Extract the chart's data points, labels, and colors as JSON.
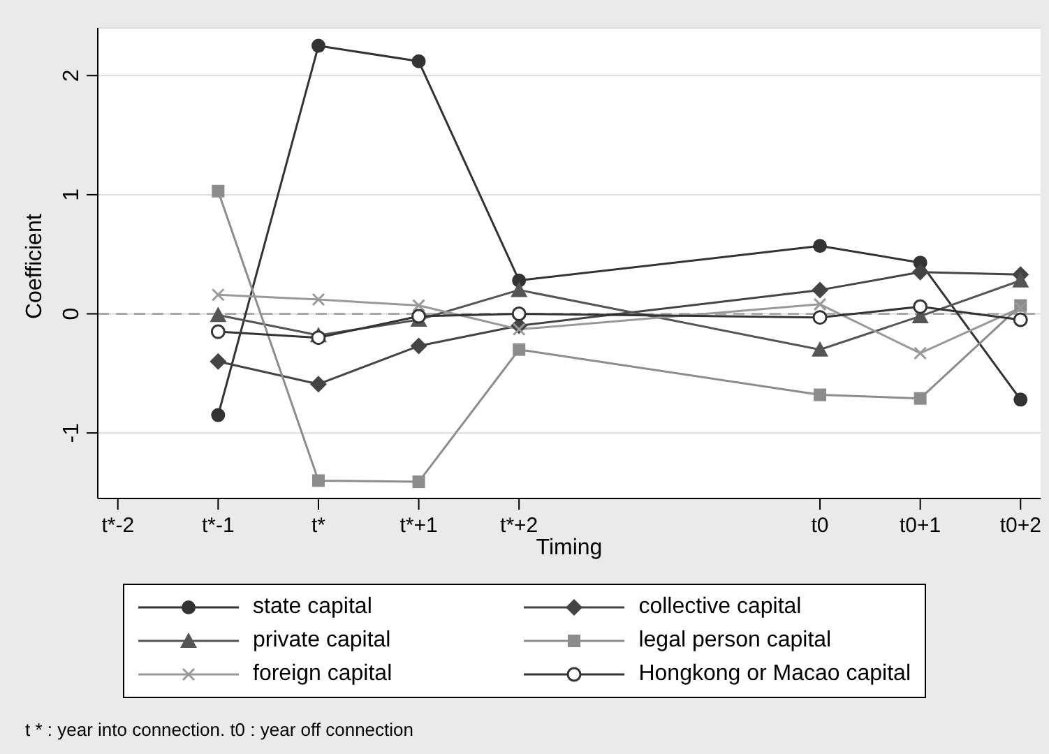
{
  "chart_data": {
    "type": "line",
    "xlabel": "Timing",
    "ylabel": "Coefficient",
    "categories": [
      "t*-2",
      "t*-1",
      "t*",
      "t*+1",
      "t*+2",
      null,
      null,
      "t0",
      "t0+1",
      "t0+2"
    ],
    "ylim": [
      -1.55,
      2.4
    ],
    "yticks": [
      -1,
      0,
      1,
      2
    ],
    "grid": "y",
    "legend": "bottom",
    "line_style": "solid",
    "series": [
      {
        "name": "state capital",
        "color": "#333333",
        "marker": "circle",
        "values": [
          null,
          -0.85,
          2.25,
          2.12,
          0.28,
          null,
          null,
          0.57,
          0.43,
          -0.72
        ]
      },
      {
        "name": "collective capital",
        "color": "#444444",
        "marker": "diamond",
        "values": [
          null,
          -0.4,
          -0.59,
          -0.27,
          -0.1,
          null,
          null,
          0.2,
          0.35,
          0.33
        ]
      },
      {
        "name": "private capital",
        "color": "#555555",
        "marker": "triangle",
        "values": [
          null,
          -0.01,
          -0.18,
          -0.05,
          0.2,
          null,
          null,
          -0.3,
          -0.02,
          0.28
        ]
      },
      {
        "name": "legal person capital",
        "color": "#8c8c8c",
        "marker": "square",
        "values": [
          null,
          1.03,
          -1.4,
          -1.41,
          -0.3,
          null,
          null,
          -0.68,
          -0.71,
          0.07
        ]
      },
      {
        "name": "foreign capital",
        "color": "#999999",
        "marker": "cross",
        "values": [
          null,
          0.16,
          0.12,
          0.07,
          -0.13,
          null,
          null,
          0.08,
          -0.33,
          0.05
        ]
      },
      {
        "name": "Hongkong or Macao capital",
        "color": "#333333",
        "marker": "open-circle",
        "values": [
          null,
          -0.15,
          -0.2,
          -0.02,
          0.0,
          null,
          null,
          -0.03,
          0.06,
          -0.05
        ]
      }
    ],
    "ref_lines": [
      {
        "axis": "y",
        "value": 0,
        "color": "#aaaaaa",
        "line_style": "dashed"
      }
    ],
    "annotations": [
      "t * : year into connection. t0 : year off connection"
    ]
  }
}
